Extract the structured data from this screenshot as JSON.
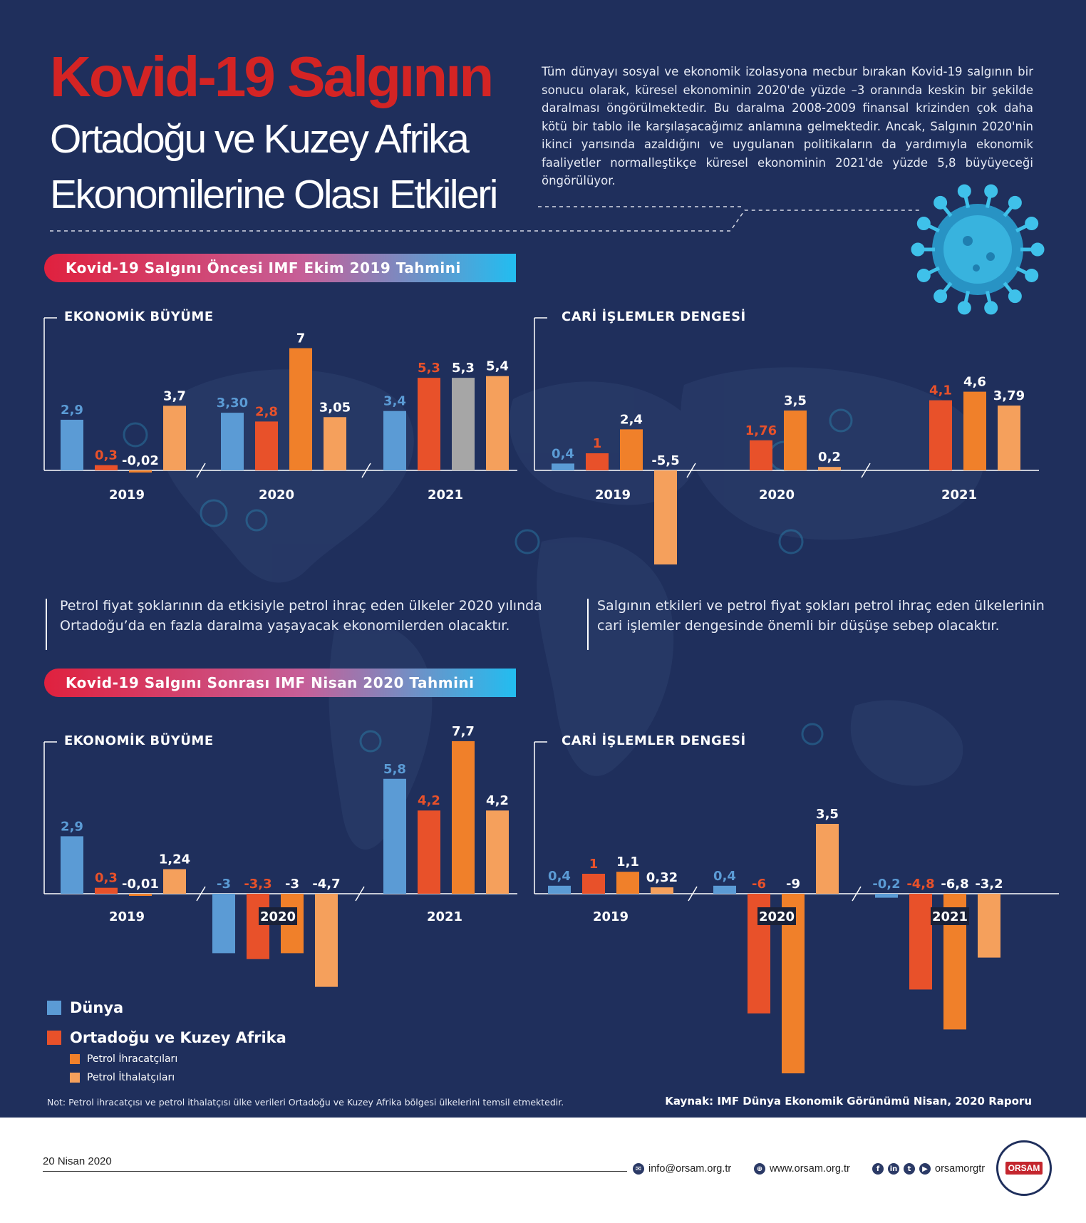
{
  "title": {
    "main": "Kovid-19 Salgının",
    "sub_line1": "Ortadoğu ve Kuzey Afrika",
    "sub_line2": "Ekonomilerine Olası Etkileri"
  },
  "intro_text": "Tüm dünyayı sosyal ve ekonomik izolasyona mecbur bırakan Kovid-19 salgının bir sonucu olarak, küresel ekonominin 2020'de yüzde –3 oranında keskin bir şekilde daralması öngörülmektedir. Bu daralma 2008-2009 finansal krizinden çok daha kötü bir tablo ile karşılaşacağımız anlamına gelmektedir. Ancak, Salgının 2020'nin ikinci yarısında azaldığını ve uygulanan politikaların da yardımıyla ekonomik faaliyetler normalleştikçe küresel ekonominin 2021'de yüzde 5,8 büyüyeceği öngörülüyor.",
  "sections": {
    "before": "Kovid-19 Salgını Öncesi IMF Ekim 2019 Tahmini",
    "after": "Kovid-19 Salgını Sonrası IMF Nisan 2020 Tahmini"
  },
  "notes": {
    "left": "Petrol fiyat şoklarının da etkisiyle petrol ihraç eden ülkeler 2020 yılında Ortadoğu’da en fazla daralma yaşayacak ekonomilerden olacaktır.",
    "right": "Salgının etkileri ve petrol fiyat şokları petrol ihraç eden ülkelerinin cari işlemler dengesinde önemli bir düşüşe sebep olacaktır."
  },
  "legend": {
    "items": [
      {
        "label": "Dünya",
        "color": "#5b9bd5"
      },
      {
        "label": "Ortadoğu ve Kuzey Afrika",
        "color": "#e8512a"
      },
      {
        "label": "Petrol İhracatçıları",
        "color": "#f0802a"
      },
      {
        "label": "Petrol İthalatçıları",
        "color": "#f5a05c"
      }
    ]
  },
  "footnote": "Not: Petrol ihracatçısı ve petrol ithalatçısı ülke verileri Ortadoğu ve Kuzey Afrika bölgesi ülkelerini temsil etmektedir.",
  "source": "Kaynak: IMF Dünya Ekonomik Görünümü Nisan, 2020 Raporu",
  "footer": {
    "date": "20 Nisan 2020",
    "email": "info@orsam.org.tr",
    "website": "www.orsam.org.tr",
    "social_handle": "orsamorgtr",
    "logo_text": "ORSAM",
    "icons": [
      "mail-icon",
      "globe-icon",
      "facebook-icon",
      "linkedin-icon",
      "twitter-icon",
      "youtube-icon"
    ]
  },
  "chart_data": [
    {
      "type": "bar",
      "title": "EKONOMİK BÜYÜME",
      "categories": [
        "2019",
        "2020",
        "2021"
      ],
      "series": [
        {
          "name": "Dünya",
          "color": "#5b9bd5",
          "values": [
            2.9,
            3.3,
            3.4
          ],
          "labels": [
            "2,9",
            "3,30",
            "3,4"
          ]
        },
        {
          "name": "Ortadoğu ve Kuzey Afrika",
          "color": "#e8512a",
          "values": [
            0.3,
            2.8,
            5.3
          ],
          "labels": [
            "0,3",
            "2,8",
            "5,3"
          ]
        },
        {
          "name": "Petrol İhracatçıları",
          "color": "#f0802a",
          "values": [
            -0.02,
            7,
            5.3
          ],
          "labels": [
            "-0,02",
            "7",
            "5,3"
          ]
        },
        {
          "name": "Petrol İthalatçıları",
          "color": "#f5a05c",
          "values": [
            3.7,
            3.05,
            5.4
          ],
          "labels": [
            "3,7",
            "3,05",
            "5,4"
          ]
        }
      ],
      "highlight": [
        {
          "category": "2021",
          "series": "Petrol İhracatçıları",
          "color": "#a6a6a6"
        }
      ],
      "ylim": [
        -1,
        8
      ]
    },
    {
      "type": "bar",
      "title": "CARİ İŞLEMLER DENGESİ",
      "categories": [
        "2019",
        "2020",
        "2021"
      ],
      "series": [
        {
          "name": "Dünya",
          "color": "#5b9bd5",
          "values": [
            0.4,
            null,
            null
          ],
          "labels": [
            "0,4",
            "",
            ""
          ]
        },
        {
          "name": "Ortadoğu ve Kuzey Afrika",
          "color": "#e8512a",
          "values": [
            1,
            1.76,
            4.1
          ],
          "labels": [
            "1",
            "1,76",
            "4,1"
          ]
        },
        {
          "name": "Petrol İhracatçıları",
          "color": "#f0802a",
          "values": [
            2.4,
            3.5,
            4.6
          ],
          "labels": [
            "2,4",
            "3,5",
            "4,6"
          ]
        },
        {
          "name": "Petrol İthalatçıları",
          "color": "#f5a05c",
          "values": [
            -5.5,
            0.2,
            3.79
          ],
          "labels": [
            "-5,5",
            "0,2",
            "3,79"
          ]
        }
      ],
      "ylim": [
        -6,
        5
      ]
    },
    {
      "type": "bar",
      "title": "EKONOMİK BÜYÜME",
      "categories": [
        "2019",
        "2020",
        "2021"
      ],
      "series": [
        {
          "name": "Dünya",
          "color": "#5b9bd5",
          "values": [
            2.9,
            -3,
            5.8
          ],
          "labels": [
            "2,9",
            "-3",
            "5,8"
          ]
        },
        {
          "name": "Ortadoğu ve Kuzey Afrika",
          "color": "#e8512a",
          "values": [
            0.3,
            -3.3,
            4.2
          ],
          "labels": [
            "0,3",
            "-3,3",
            "4,2"
          ]
        },
        {
          "name": "Petrol İhracatçıları",
          "color": "#f0802a",
          "values": [
            -0.01,
            -3,
            7.7
          ],
          "labels": [
            "-0,01",
            "-3",
            "7,7"
          ]
        },
        {
          "name": "Petrol İthalatçıları",
          "color": "#f5a05c",
          "values": [
            1.24,
            -4.7,
            4.2
          ],
          "labels": [
            "1,24",
            "-4,7",
            "4,2"
          ]
        }
      ],
      "ylim": [
        -5,
        8
      ]
    },
    {
      "type": "bar",
      "title": "CARİ İŞLEMLER DENGESİ",
      "categories": [
        "2019",
        "2020",
        "2021"
      ],
      "series": [
        {
          "name": "Dünya",
          "color": "#5b9bd5",
          "values": [
            0.4,
            0.4,
            -0.2
          ],
          "labels": [
            "0,4",
            "0,4",
            "-0,2"
          ]
        },
        {
          "name": "Ortadoğu ve Kuzey Afrika",
          "color": "#e8512a",
          "values": [
            1,
            -6,
            -4.8
          ],
          "labels": [
            "1",
            "-6",
            "-4,8"
          ]
        },
        {
          "name": "Petrol İhracatçıları",
          "color": "#f0802a",
          "values": [
            1.1,
            -9,
            -6.8
          ],
          "labels": [
            "1,1",
            "-9",
            "-6,8"
          ]
        },
        {
          "name": "Petrol İthalatçıları",
          "color": "#f5a05c",
          "values": [
            0.32,
            3.5,
            -3.2
          ],
          "labels": [
            "0,32",
            "3,5",
            "-3,2"
          ]
        }
      ],
      "ylim": [
        -9,
        4
      ]
    }
  ]
}
